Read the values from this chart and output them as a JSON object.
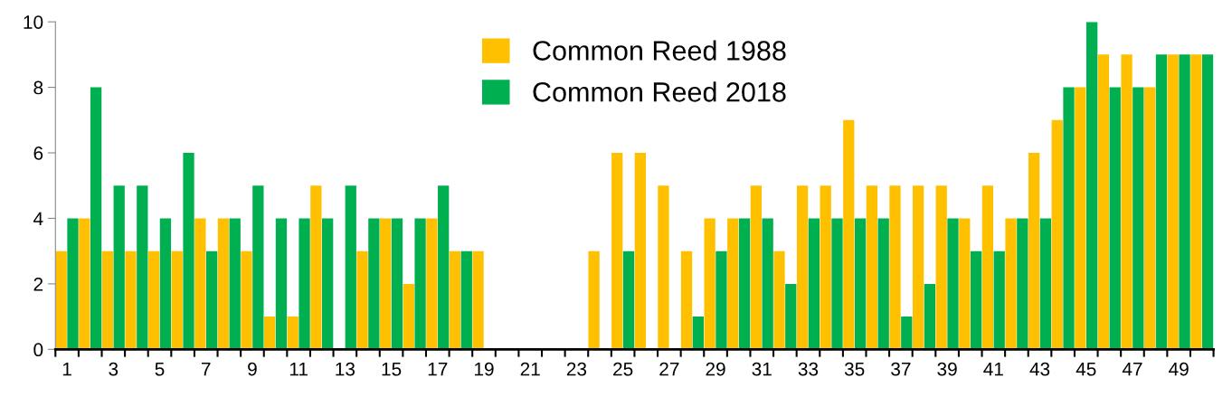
{
  "chart_data": {
    "type": "bar",
    "categories": [
      "1",
      null,
      "3",
      null,
      "5",
      null,
      "7",
      null,
      "9",
      null,
      "11",
      null,
      "13",
      null,
      "15",
      null,
      "17",
      null,
      "19",
      null,
      "21",
      null,
      "23",
      null,
      "25",
      null,
      "27",
      null,
      "29",
      null,
      "31",
      null,
      "33",
      null,
      "35",
      null,
      "37",
      null,
      "39",
      null,
      "41",
      null,
      "43",
      null,
      "45",
      null,
      "47",
      null,
      "49",
      null
    ],
    "series": [
      {
        "name": "Common Reed 1988",
        "color": "#ffc000",
        "values": [
          3,
          4,
          3,
          3,
          3,
          3,
          4,
          4,
          3,
          1,
          1,
          5,
          0,
          3,
          4,
          2,
          4,
          3,
          3,
          0,
          0,
          0,
          0,
          3,
          6,
          6,
          5,
          3,
          4,
          4,
          5,
          3,
          5,
          5,
          7,
          5,
          5,
          5,
          5,
          4,
          5,
          4,
          6,
          7,
          8,
          9,
          9,
          8,
          9,
          9
        ]
      },
      {
        "name": "Common Reed 2018",
        "color": "#00b050",
        "values": [
          4,
          8,
          5,
          5,
          4,
          6,
          3,
          4,
          5,
          4,
          4,
          4,
          5,
          4,
          4,
          4,
          5,
          3,
          0,
          0,
          0,
          0,
          0,
          0,
          3,
          0,
          0,
          1,
          3,
          4,
          4,
          2,
          4,
          4,
          4,
          4,
          1,
          2,
          4,
          3,
          3,
          4,
          4,
          8,
          10,
          8,
          8,
          9,
          9,
          9
        ]
      }
    ],
    "ylim": [
      0,
      10
    ],
    "yticks": [
      0,
      2,
      4,
      6,
      8,
      10
    ],
    "grid": false,
    "legend": "top"
  }
}
